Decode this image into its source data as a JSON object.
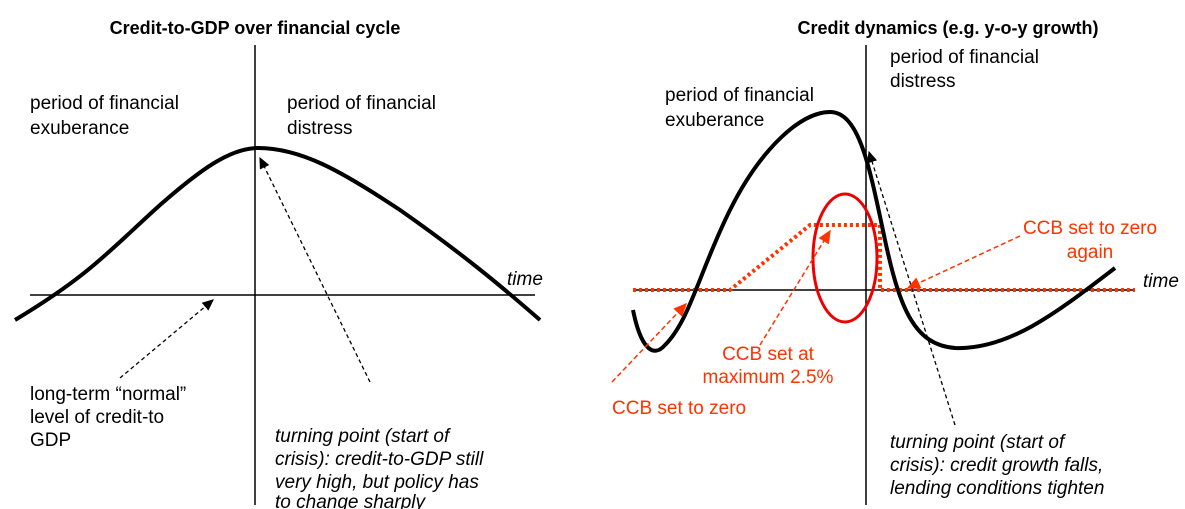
{
  "left_panel": {
    "title": "Credit-to-GDP over financial cycle",
    "exuberance": [
      "period of financial",
      "exuberance"
    ],
    "distress": [
      "period of financial",
      "distress"
    ],
    "time_label": "time",
    "normal_level": [
      "long-term “normal”",
      "level of credit-to",
      "GDP"
    ],
    "turning_point": [
      "turning point (start of",
      "crisis): credit-to-GDP still",
      "very high, but policy has",
      "to change sharply"
    ]
  },
  "right_panel": {
    "title": "Credit dynamics (e.g. y-o-y growth)",
    "exuberance": [
      "period of financial",
      "exuberance"
    ],
    "distress": [
      "period of financial",
      "distress"
    ],
    "time_label": "time",
    "ccb_zero": "CCB set to zero",
    "ccb_max": [
      "CCB set at",
      "maximum 2.5%"
    ],
    "ccb_zero_again": [
      "CCB set to zero",
      "again"
    ],
    "turning_point": [
      "turning point (start of",
      "crisis): credit growth falls,",
      "lending conditions tighten"
    ]
  }
}
